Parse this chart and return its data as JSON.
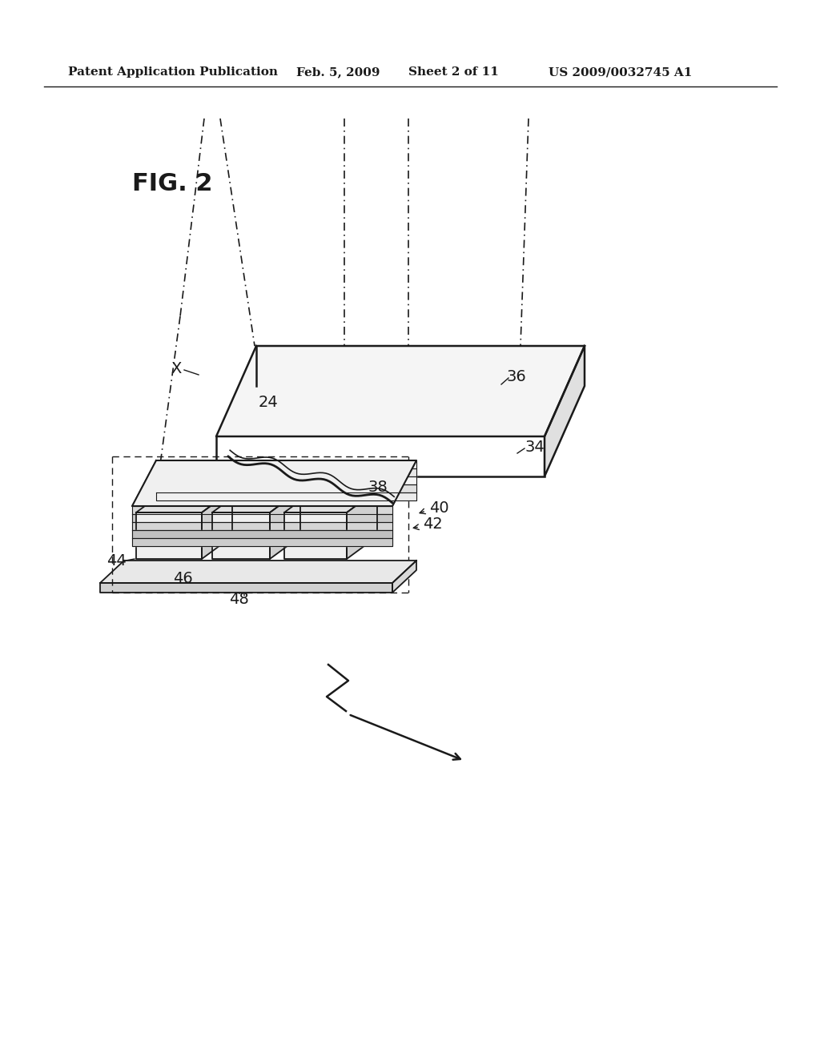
{
  "bg_color": "#ffffff",
  "line_color": "#1a1a1a",
  "header_text": "Patent Application Publication",
  "header_date": "Feb. 5, 2009",
  "header_sheet": "Sheet 2 of 11",
  "header_patent": "US 2009/0032745 A1",
  "fig_label": "FIG. 2"
}
